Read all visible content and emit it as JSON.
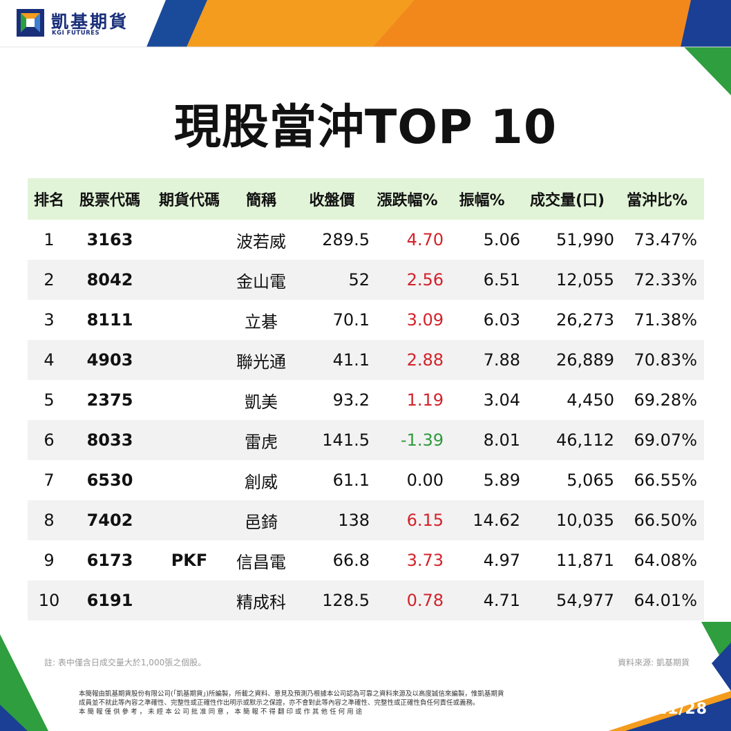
{
  "brand": {
    "name_zh": "凱基期貨",
    "name_en": "KGI FUTURES",
    "colors": {
      "navy": "#1a2f7a",
      "orange": "#f39c1e",
      "green": "#2e9e3e",
      "header_green": "#e2f4d8"
    }
  },
  "title": "現股當沖TOP 10",
  "table": {
    "headers": {
      "rank": "排名",
      "stock_code": "股票代碼",
      "futures_code": "期貨代碼",
      "name": "簡稱",
      "close": "收盤價",
      "change_pct": "漲跌幅%",
      "amplitude": "振幅%",
      "volume": "成交量(口)",
      "daytrade_ratio": "當沖比%"
    },
    "rows": [
      {
        "rank": "1",
        "stock_code": "3163",
        "futures_code": "",
        "name": "波若威",
        "close": "289.5",
        "change_pct": "4.70",
        "amplitude": "5.06",
        "volume": "51,990",
        "daytrade_ratio": "73.47%",
        "trend": "up"
      },
      {
        "rank": "2",
        "stock_code": "8042",
        "futures_code": "",
        "name": "金山電",
        "close": "52",
        "change_pct": "2.56",
        "amplitude": "6.51",
        "volume": "12,055",
        "daytrade_ratio": "72.33%",
        "trend": "up"
      },
      {
        "rank": "3",
        "stock_code": "8111",
        "futures_code": "",
        "name": "立碁",
        "close": "70.1",
        "change_pct": "3.09",
        "amplitude": "6.03",
        "volume": "26,273",
        "daytrade_ratio": "71.38%",
        "trend": "up"
      },
      {
        "rank": "4",
        "stock_code": "4903",
        "futures_code": "",
        "name": "聯光通",
        "close": "41.1",
        "change_pct": "2.88",
        "amplitude": "7.88",
        "volume": "26,889",
        "daytrade_ratio": "70.83%",
        "trend": "up"
      },
      {
        "rank": "5",
        "stock_code": "2375",
        "futures_code": "",
        "name": "凱美",
        "close": "93.2",
        "change_pct": "1.19",
        "amplitude": "3.04",
        "volume": "4,450",
        "daytrade_ratio": "69.28%",
        "trend": "up"
      },
      {
        "rank": "6",
        "stock_code": "8033",
        "futures_code": "",
        "name": "雷虎",
        "close": "141.5",
        "change_pct": "-1.39",
        "amplitude": "8.01",
        "volume": "46,112",
        "daytrade_ratio": "69.07%",
        "trend": "down"
      },
      {
        "rank": "7",
        "stock_code": "6530",
        "futures_code": "",
        "name": "創威",
        "close": "61.1",
        "change_pct": "0.00",
        "amplitude": "5.89",
        "volume": "5,065",
        "daytrade_ratio": "66.55%",
        "trend": "flat"
      },
      {
        "rank": "8",
        "stock_code": "7402",
        "futures_code": "",
        "name": "邑錡",
        "close": "138",
        "change_pct": "6.15",
        "amplitude": "14.62",
        "volume": "10,035",
        "daytrade_ratio": "66.50%",
        "trend": "up"
      },
      {
        "rank": "9",
        "stock_code": "6173",
        "futures_code": "PKF",
        "name": "信昌電",
        "close": "66.8",
        "change_pct": "3.73",
        "amplitude": "4.97",
        "volume": "11,871",
        "daytrade_ratio": "64.08%",
        "trend": "up"
      },
      {
        "rank": "10",
        "stock_code": "6191",
        "futures_code": "",
        "name": "精成科",
        "close": "128.5",
        "change_pct": "0.78",
        "amplitude": "4.71",
        "volume": "54,977",
        "daytrade_ratio": "64.01%",
        "trend": "up"
      }
    ]
  },
  "footer": {
    "note": "註: 表中僅含日成交量大於1,000張之個股。",
    "source": "資料來源: 凱基期貨",
    "disclaimer": [
      "本簡報由凱基期貨股份有限公司(「凱基期貨」)所編製，所載之資料、意見及預測乃根據本公司認為可靠之資料來源及以高度誠信來編製，惟凱基期貨",
      "成員並不就此等內容之準確性、完整性或正確性作出明示或默示之保證，亦不會對此等內容之準確性、完整性或正確性負任何責任或義務。",
      "本 簡 報 僅 供 參 考 ， 未 經 本 公 司 批 准 同 意 ， 本 簡 報 不 得 翻 印 或 作 其 他 任 何 用 途"
    ],
    "date": "2025/11/28"
  }
}
